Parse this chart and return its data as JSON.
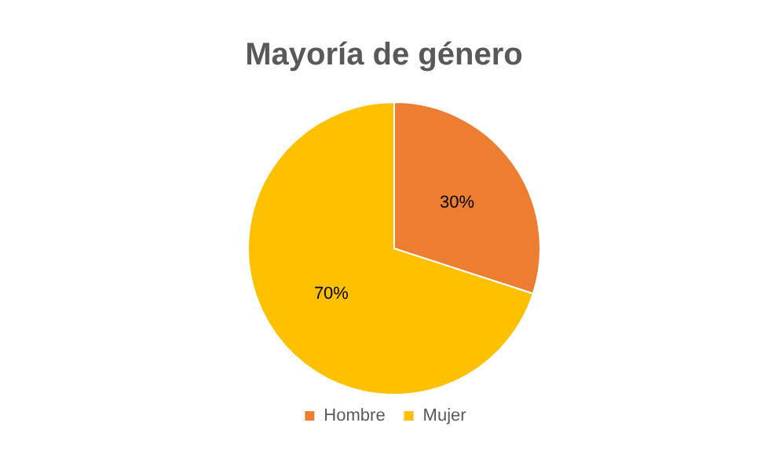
{
  "chart_data": {
    "type": "pie",
    "title": "Mayoría de género",
    "categories": [
      "Hombre",
      "Mujer"
    ],
    "values": [
      30,
      70
    ],
    "colors": [
      "#ed7d31",
      "#ffc000"
    ],
    "value_labels": [
      "30%",
      "70%"
    ],
    "legend": "bottom"
  }
}
